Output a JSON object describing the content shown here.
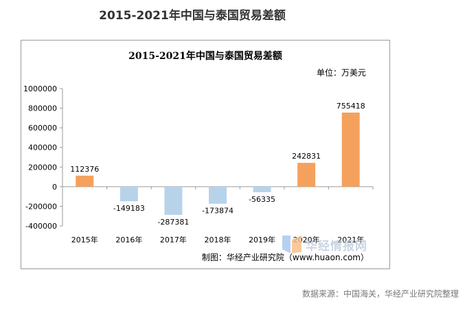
{
  "page": {
    "title": "2015-2021年中国与泰国贸易差额",
    "source": "数据来源：中国海关，华经产业研究院整理"
  },
  "chart_data": {
    "type": "bar",
    "title": "2015-2021年中国与泰国贸易差额",
    "unit": "单位：万美元",
    "categories": [
      "2015年",
      "2016年",
      "2017年",
      "2018年",
      "2019年",
      "2020年",
      "2021年"
    ],
    "values": [
      112376,
      -149183,
      -287381,
      -173874,
      -56335,
      242831,
      755418
    ],
    "value_labels": [
      "112376",
      "-149183",
      "-287381",
      "-173874",
      "-56335",
      "242831",
      "755418"
    ],
    "ylim": [
      -400000,
      1000000
    ],
    "yticks": [
      1000000,
      800000,
      600000,
      400000,
      200000,
      0,
      -200000,
      -400000
    ],
    "ytick_labels": [
      "1000000",
      "800000",
      "600000",
      "400000",
      "200000",
      "0",
      "-200000",
      "-400000"
    ],
    "colors": {
      "positive": "#f4a15d",
      "negative": "#b7d3ea",
      "axis": "#9a9a9a"
    },
    "grid": false,
    "legend": "none",
    "credit": "制图：华经产业研究院（www.huaon.com）",
    "watermark": "华经情报网"
  }
}
